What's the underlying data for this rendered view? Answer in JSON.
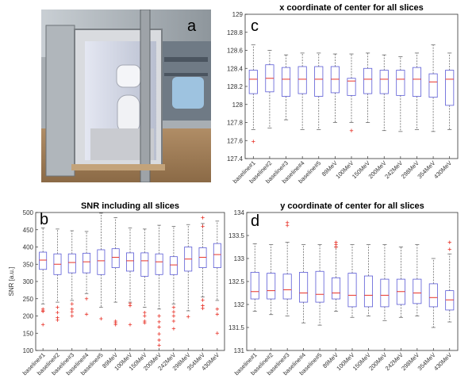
{
  "panel_letters": {
    "a": "a",
    "b": "b",
    "c": "c",
    "d": "d"
  },
  "colors": {
    "box": "#5b5bd6",
    "median": "#e8342a",
    "outlier": "#e8342a",
    "whisker": "#555555"
  },
  "chart_data": [
    {
      "type": "box",
      "panel": "c",
      "title": "x coordinate of center for all slices",
      "xlabel": "",
      "ylabel": "",
      "ylim": [
        127.4,
        129
      ],
      "yticks": [
        127.4,
        127.6,
        127.8,
        128,
        128.2,
        128.4,
        128.6,
        128.8,
        129
      ],
      "ytick_labels": [
        "127.4",
        "127.6",
        "127.8",
        "128",
        "128.2",
        "128.4",
        "128.6",
        "128.8",
        "129"
      ],
      "categories": [
        "baseline#1",
        "baseline#2",
        "baseline#3",
        "baseline#4",
        "baseline#5",
        "89MeV",
        "100MeV",
        "150MeV",
        "200MeV",
        "242MeV",
        "298MeV",
        "354MeV",
        "430MeV"
      ],
      "boxes": [
        {
          "min": 127.72,
          "q1": 128.12,
          "median": 128.28,
          "q3": 128.38,
          "max": 128.66,
          "outliers": [
            127.59
          ]
        },
        {
          "min": 127.74,
          "q1": 128.14,
          "median": 128.29,
          "q3": 128.44,
          "max": 128.6,
          "outliers": []
        },
        {
          "min": 127.83,
          "q1": 128.09,
          "median": 128.28,
          "q3": 128.41,
          "max": 128.55,
          "outliers": []
        },
        {
          "min": 127.72,
          "q1": 128.12,
          "median": 128.28,
          "q3": 128.42,
          "max": 128.57,
          "outliers": []
        },
        {
          "min": 127.72,
          "q1": 128.09,
          "median": 128.28,
          "q3": 128.42,
          "max": 128.57,
          "outliers": []
        },
        {
          "min": 127.8,
          "q1": 128.13,
          "median": 128.28,
          "q3": 128.42,
          "max": 128.56,
          "outliers": []
        },
        {
          "min": 127.8,
          "q1": 128.1,
          "median": 128.26,
          "q3": 128.29,
          "max": 128.56,
          "outliers": [
            127.71
          ]
        },
        {
          "min": 127.8,
          "q1": 128.12,
          "median": 128.28,
          "q3": 128.4,
          "max": 128.57,
          "outliers": []
        },
        {
          "min": 127.71,
          "q1": 128.12,
          "median": 128.28,
          "q3": 128.38,
          "max": 128.55,
          "outliers": []
        },
        {
          "min": 127.7,
          "q1": 128.1,
          "median": 128.28,
          "q3": 128.38,
          "max": 128.53,
          "outliers": []
        },
        {
          "min": 127.72,
          "q1": 128.09,
          "median": 128.28,
          "q3": 128.41,
          "max": 128.57,
          "outliers": []
        },
        {
          "min": 127.7,
          "q1": 128.08,
          "median": 128.25,
          "q3": 128.34,
          "max": 128.66,
          "outliers": []
        },
        {
          "min": 127.72,
          "q1": 127.99,
          "median": 128.28,
          "q3": 128.38,
          "max": 128.57,
          "outliers": []
        }
      ]
    },
    {
      "type": "box",
      "panel": "b",
      "title": "SNR including all slices",
      "xlabel": "",
      "ylabel": "SNR [a.u.]",
      "ylim": [
        100,
        500
      ],
      "yticks": [
        100,
        150,
        200,
        250,
        300,
        350,
        400,
        450,
        500
      ],
      "ytick_labels": [
        "100",
        "150",
        "200",
        "250",
        "300",
        "350",
        "400",
        "450",
        "500"
      ],
      "categories": [
        "baseline#1",
        "baseline#2",
        "baseline#3",
        "baseline#4",
        "baseline#5",
        "89MeV",
        "100MeV",
        "150MeV",
        "200MeV",
        "242MeV",
        "298MeV",
        "354MeV",
        "430MeV"
      ],
      "boxes": [
        {
          "min": 235,
          "q1": 335,
          "median": 362,
          "q3": 385,
          "max": 455,
          "outliers": [
            220,
            215,
            213,
            175
          ]
        },
        {
          "min": 240,
          "q1": 320,
          "median": 350,
          "q3": 380,
          "max": 452,
          "outliers": [
            225,
            210,
            195,
            188
          ]
        },
        {
          "min": 245,
          "q1": 325,
          "median": 355,
          "q3": 380,
          "max": 447,
          "outliers": [
            235,
            220,
            212,
            200
          ]
        },
        {
          "min": 265,
          "q1": 325,
          "median": 357,
          "q3": 382,
          "max": 445,
          "outliers": [
            250,
            205
          ]
        },
        {
          "min": 225,
          "q1": 320,
          "median": 360,
          "q3": 392,
          "max": 498,
          "outliers": [
            192
          ]
        },
        {
          "min": 240,
          "q1": 340,
          "median": 370,
          "q3": 395,
          "max": 485,
          "outliers": [
            185,
            180,
            175
          ]
        },
        {
          "min": 240,
          "q1": 330,
          "median": 360,
          "q3": 383,
          "max": 455,
          "outliers": [
            236,
            230,
            175
          ]
        },
        {
          "min": 225,
          "q1": 315,
          "median": 360,
          "q3": 383,
          "max": 452,
          "outliers": [
            210,
            200,
            185,
            180
          ]
        },
        {
          "min": 220,
          "q1": 320,
          "median": 357,
          "q3": 380,
          "max": 463,
          "outliers": [
            200,
            183,
            168,
            148,
            130,
            115
          ]
        },
        {
          "min": 235,
          "q1": 320,
          "median": 348,
          "q3": 372,
          "max": 460,
          "outliers": [
            225,
            212,
            200,
            185,
            163
          ]
        },
        {
          "min": 215,
          "q1": 330,
          "median": 365,
          "q3": 400,
          "max": 465,
          "outliers": [
            198
          ]
        },
        {
          "min": 255,
          "q1": 340,
          "median": 370,
          "q3": 398,
          "max": 468,
          "outliers": [
            485,
            460,
            246,
            230,
            222
          ]
        },
        {
          "min": 245,
          "q1": 340,
          "median": 378,
          "q3": 410,
          "max": 475,
          "outliers": [
            220,
            205,
            150
          ]
        }
      ]
    },
    {
      "type": "box",
      "panel": "d",
      "title": "y coordinate of center for all slices",
      "xlabel": "",
      "ylabel": "",
      "ylim": [
        131,
        134
      ],
      "yticks": [
        131,
        131.5,
        132,
        132.5,
        133,
        133.5,
        134
      ],
      "ytick_labels": [
        "131",
        "131.5",
        "132",
        "132.5",
        "133",
        "133.5",
        "134"
      ],
      "categories": [
        "baseline#1",
        "baseline#2",
        "baseline#3",
        "baseline#4",
        "baseline#5",
        "89MeV",
        "100MeV",
        "150MeV",
        "200MeV",
        "242MeV",
        "298MeV",
        "354MeV",
        "430MeV"
      ],
      "boxes": [
        {
          "min": 131.85,
          "q1": 132.12,
          "median": 132.28,
          "q3": 132.7,
          "max": 133.32,
          "outliers": []
        },
        {
          "min": 131.78,
          "q1": 132.12,
          "median": 132.3,
          "q3": 132.68,
          "max": 133.3,
          "outliers": []
        },
        {
          "min": 131.75,
          "q1": 132.12,
          "median": 132.32,
          "q3": 132.66,
          "max": 133.35,
          "outliers": [
            133.78,
            133.72
          ]
        },
        {
          "min": 131.6,
          "q1": 132.05,
          "median": 132.25,
          "q3": 132.7,
          "max": 133.3,
          "outliers": []
        },
        {
          "min": 131.55,
          "q1": 132.05,
          "median": 132.22,
          "q3": 132.72,
          "max": 133.3,
          "outliers": []
        },
        {
          "min": 131.85,
          "q1": 132.12,
          "median": 132.25,
          "q3": 132.58,
          "max": 133.25,
          "outliers": [
            133.35,
            133.3,
            133.25
          ]
        },
        {
          "min": 131.72,
          "q1": 131.95,
          "median": 132.2,
          "q3": 132.68,
          "max": 133.3,
          "outliers": []
        },
        {
          "min": 131.75,
          "q1": 131.95,
          "median": 132.2,
          "q3": 132.62,
          "max": 133.3,
          "outliers": []
        },
        {
          "min": 131.65,
          "q1": 131.95,
          "median": 132.2,
          "q3": 132.55,
          "max": 133.3,
          "outliers": []
        },
        {
          "min": 131.72,
          "q1": 132.0,
          "median": 132.28,
          "q3": 132.55,
          "max": 133.25,
          "outliers": []
        },
        {
          "min": 131.75,
          "q1": 132.02,
          "median": 132.25,
          "q3": 132.55,
          "max": 133.3,
          "outliers": []
        },
        {
          "min": 131.5,
          "q1": 131.95,
          "median": 132.15,
          "q3": 132.45,
          "max": 133.0,
          "outliers": []
        },
        {
          "min": 131.62,
          "q1": 131.88,
          "median": 132.1,
          "q3": 132.3,
          "max": 133.1,
          "outliers": [
            133.35,
            133.2
          ]
        }
      ]
    }
  ]
}
